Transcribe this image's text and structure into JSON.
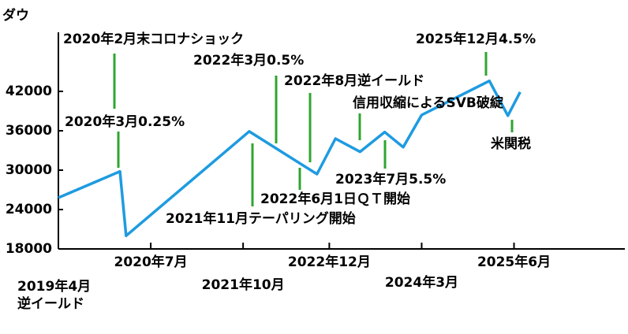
{
  "chart_data": {
    "type": "line",
    "title": "ダウ",
    "x": [
      "2019-04",
      "2020-02",
      "2020-03",
      "2021-11",
      "2022-10",
      "2023-01",
      "2023-05",
      "2023-09",
      "2023-12",
      "2024-03",
      "2025-02",
      "2025-05",
      "2025-07"
    ],
    "series": [
      {
        "color": "#1e9be0",
        "values": [
          25800,
          29800,
          20000,
          35900,
          29400,
          34800,
          32800,
          35800,
          33500,
          38400,
          43600,
          38300,
          41900
        ]
      }
    ],
    "ylim": [
      18000,
      51000
    ],
    "yticks": [
      18000,
      24000,
      30000,
      36000,
      42000
    ],
    "xlim": [
      "2019-04",
      "2026-12"
    ],
    "xticks": [
      {
        "value": "2019-04",
        "label": "2019年4月"
      },
      {
        "value": "2020-07",
        "label": "2020年7月"
      },
      {
        "value": "2021-10",
        "label": "2021年10月"
      },
      {
        "value": "2022-12",
        "label": "2022年12月"
      },
      {
        "value": "2024-03",
        "label": "2024年3月"
      },
      {
        "value": "2025-06",
        "label": "2025年6月"
      }
    ],
    "annotations": [
      "2020年2月末コロナショック",
      "2020年3月0.25%",
      "2022年3月0.5%",
      "2021年11月テーパリング開始",
      "2022年8月逆イールド",
      "2022年6月1日ＱＴ開始",
      "信用収縮によるSVB破綻",
      "2023年7月5.5%",
      "2025年12月4.5%",
      "米関税",
      "逆イールド"
    ],
    "annotation_color": "#2fa52f"
  }
}
